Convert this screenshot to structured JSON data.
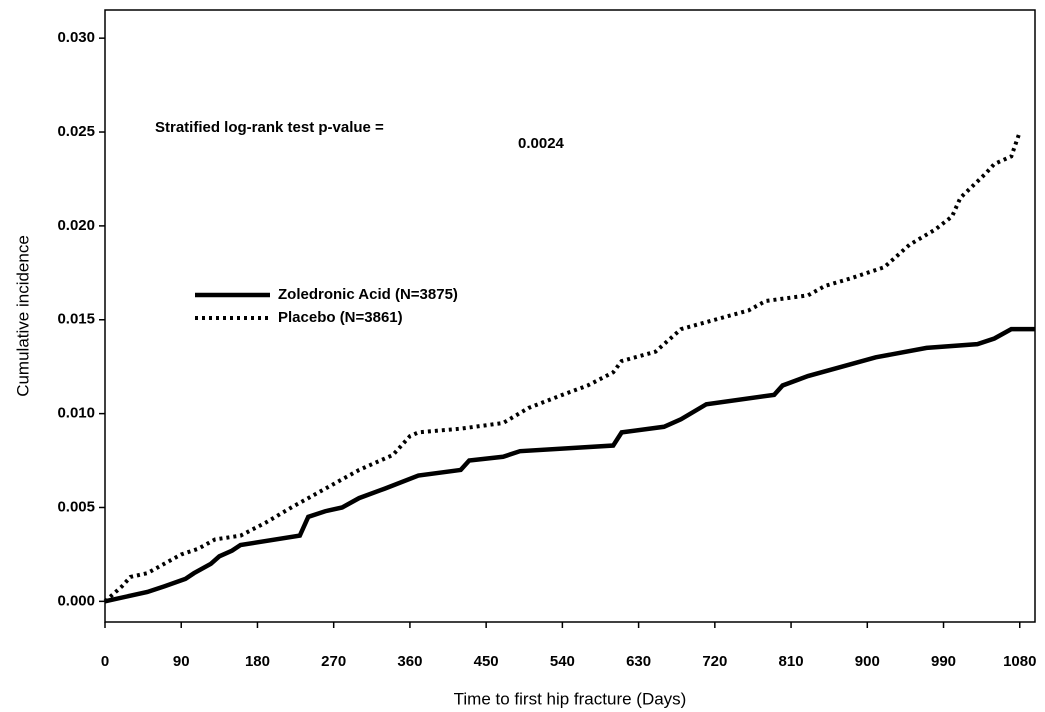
{
  "chart_data": {
    "type": "line",
    "ylabel": "Cumulative incidence",
    "xlabel": "Time to first hip fracture (Days)",
    "annotations": [
      "Stratified log-rank test p-value =",
      "0.0024"
    ],
    "xlim": [
      0,
      1098
    ],
    "xticks": [
      0,
      90,
      180,
      270,
      360,
      450,
      540,
      630,
      720,
      810,
      900,
      990,
      1080
    ],
    "ylim": [
      -0.0011,
      0.0315
    ],
    "yticks": [
      {
        "value": 0,
        "label": "0.000"
      },
      {
        "value": 0.005,
        "label": "0.005"
      },
      {
        "value": 0.01,
        "label": "0.010"
      },
      {
        "value": 0.015,
        "label": "0.015"
      },
      {
        "value": 0.02,
        "label": "0.020"
      },
      {
        "value": 0.025,
        "label": "0.025"
      },
      {
        "value": 0.03,
        "label": "0.030"
      }
    ],
    "series": [
      {
        "name": "Zoledronic Acid (N=3875)",
        "color": "#000000",
        "line_style": "solid",
        "x": [
          0,
          30,
          50,
          70,
          95,
          105,
          125,
          135,
          150,
          160,
          230,
          240,
          260,
          280,
          300,
          330,
          370,
          420,
          430,
          470,
          490,
          600,
          610,
          660,
          680,
          710,
          790,
          800,
          830,
          910,
          970,
          1030,
          1050,
          1070,
          1098
        ],
        "values": [
          0,
          0.0003,
          0.0005,
          0.0008,
          0.0012,
          0.0015,
          0.002,
          0.0024,
          0.0027,
          0.003,
          0.0035,
          0.0045,
          0.0048,
          0.005,
          0.0055,
          0.006,
          0.0067,
          0.007,
          0.0075,
          0.0077,
          0.008,
          0.0083,
          0.009,
          0.0093,
          0.0097,
          0.0105,
          0.011,
          0.0115,
          0.012,
          0.013,
          0.0135,
          0.0137,
          0.014,
          0.0145,
          0.0145
        ]
      },
      {
        "name": "Placebo (N=3861)",
        "color": "#000000",
        "line_style": "dotted",
        "x": [
          0,
          20,
          30,
          50,
          70,
          90,
          110,
          130,
          160,
          190,
          220,
          260,
          300,
          340,
          360,
          370,
          420,
          470,
          500,
          540,
          570,
          600,
          610,
          650,
          680,
          720,
          760,
          780,
          830,
          850,
          880,
          920,
          950,
          980,
          1000,
          1010,
          1040,
          1050,
          1070,
          1080
        ],
        "values": [
          0,
          0.0008,
          0.0013,
          0.0015,
          0.002,
          0.0025,
          0.0028,
          0.0033,
          0.0035,
          0.0042,
          0.005,
          0.006,
          0.007,
          0.0078,
          0.0088,
          0.009,
          0.0092,
          0.0095,
          0.0103,
          0.011,
          0.0115,
          0.0122,
          0.0128,
          0.0133,
          0.0145,
          0.015,
          0.0155,
          0.016,
          0.0163,
          0.0168,
          0.0172,
          0.0178,
          0.019,
          0.0198,
          0.0205,
          0.0215,
          0.0228,
          0.0233,
          0.0237,
          0.025
        ]
      }
    ]
  }
}
